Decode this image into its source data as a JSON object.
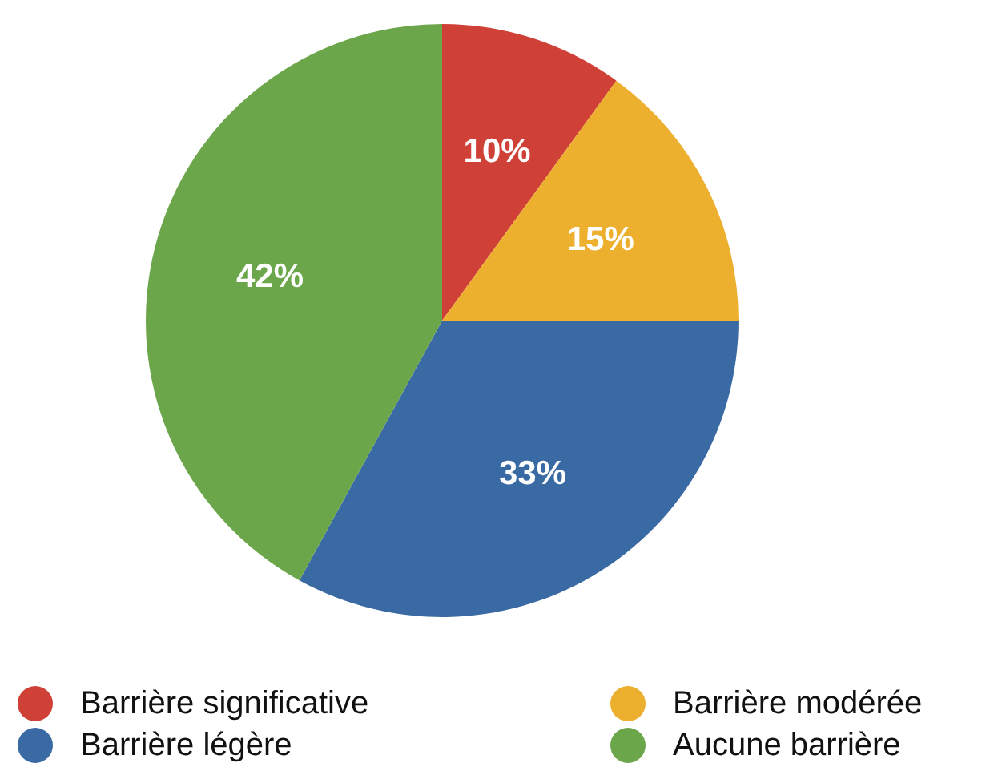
{
  "chart_data": {
    "type": "pie",
    "categories": [
      "Barrière significative",
      "Barrière modérée",
      "Barrière légère",
      "Aucune barrière"
    ],
    "values": [
      10,
      15,
      33,
      42
    ],
    "colors": [
      "#cf4037",
      "#ecaf2e",
      "#3a6aa4",
      "#6ca64a"
    ],
    "value_labels": [
      "10%",
      "15%",
      "33%",
      "42%"
    ],
    "legend": "bottom"
  }
}
